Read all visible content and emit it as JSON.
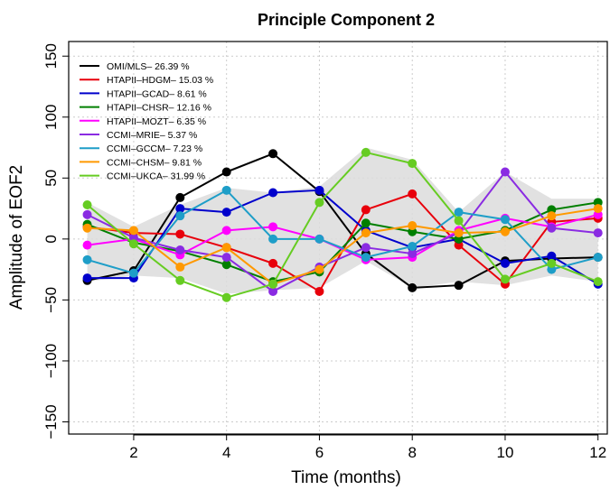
{
  "chart_data": {
    "type": "line",
    "title": "Principle Component 2",
    "xlabel": "Time (months)",
    "ylabel": "Amplitude of EOF2",
    "xlim": [
      0.6,
      12.2
    ],
    "ylim": [
      -160,
      162
    ],
    "x": [
      1,
      2,
      3,
      4,
      5,
      6,
      7,
      8,
      9,
      10,
      11,
      12
    ],
    "x_ticks": [
      2,
      4,
      6,
      8,
      10,
      12
    ],
    "y_ticks": [
      -150,
      -100,
      -50,
      0,
      50,
      100,
      150
    ],
    "grid": true,
    "legend_position": "top-left",
    "shaded_band": {
      "color": "#dcdcdc",
      "upper": [
        30,
        10,
        28,
        42,
        38,
        43,
        75,
        65,
        22,
        55,
        33,
        33
      ],
      "lower": [
        -35,
        -30,
        -32,
        -45,
        -42,
        -40,
        -18,
        -40,
        -35,
        -38,
        -30,
        -35
      ]
    },
    "series": [
      {
        "name": "OMI/MLS– 26.39 %",
        "color": "#000000",
        "values": [
          -34,
          -26,
          34,
          55,
          70,
          39,
          -12,
          -40,
          -38,
          -18,
          -16,
          -15
        ]
      },
      {
        "name": "HTAPII–HDGM– 15.03 %",
        "color": "#e8000b",
        "values": [
          10,
          5,
          4,
          -7,
          -20,
          -43,
          24,
          37,
          -5,
          -37,
          14,
          17
        ]
      },
      {
        "name": "HTAPII–GCAD– 8.61 %",
        "color": "#0000cc",
        "values": [
          -32,
          -32,
          25,
          22,
          38,
          40,
          7,
          -7,
          0,
          -20,
          -14,
          -37
        ]
      },
      {
        "name": "HTAPII–CHSR– 12.16 %",
        "color": "#007f00",
        "values": [
          12,
          -3,
          -10,
          -21,
          -35,
          -27,
          13,
          6,
          0,
          7,
          24,
          30
        ]
      },
      {
        "name": "HTAPII–MOZT– 6.35 %",
        "color": "#ff00ff",
        "values": [
          -5,
          0,
          -13,
          7,
          10,
          0,
          -17,
          -15,
          7,
          17,
          10,
          20
        ]
      },
      {
        "name": "CCMI–MRIE– 5.37 %",
        "color": "#8a2be2",
        "values": [
          20,
          1,
          -9,
          -15,
          -43,
          -23,
          -7,
          -12,
          5,
          55,
          9,
          5
        ]
      },
      {
        "name": "CCMI–GCCM– 7.23 %",
        "color": "#1e9ec8",
        "values": [
          -17,
          -28,
          19,
          40,
          0,
          0,
          -15,
          -6,
          22,
          16,
          -25,
          -15
        ]
      },
      {
        "name": "CCMI–CHSM– 9.81 %",
        "color": "#ff9900",
        "values": [
          9,
          7,
          -23,
          -7,
          -37,
          -25,
          5,
          11,
          5,
          6,
          19,
          25
        ]
      },
      {
        "name": "CCMI–UKCA– 31.99 %",
        "color": "#66cc22",
        "values": [
          28,
          -4,
          -34,
          -48,
          -37,
          30,
          71,
          62,
          15,
          -33,
          -20,
          -35
        ]
      }
    ]
  }
}
